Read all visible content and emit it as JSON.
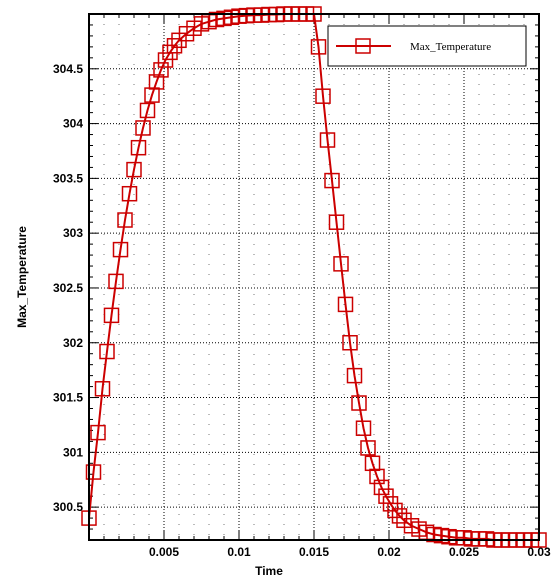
{
  "chart_data": {
    "type": "line",
    "title": "",
    "xlabel": "Time",
    "ylabel": "Max_Temperature",
    "xlim": [
      0,
      0.03
    ],
    "ylim": [
      300.2,
      305
    ],
    "x_ticks": [
      0.005,
      0.01,
      0.015,
      0.02,
      0.025,
      0.03
    ],
    "x_tick_labels": [
      "0.005",
      "0.01",
      "0.015",
      "0.02",
      "0.025",
      "0.03"
    ],
    "y_ticks": [
      300.5,
      301,
      301.5,
      302,
      302.5,
      303,
      303.5,
      304,
      304.5
    ],
    "y_tick_labels": [
      "300.5",
      "301",
      "301.5",
      "302",
      "302.5",
      "303",
      "303.5",
      "304",
      "304.5"
    ],
    "grid": true,
    "legend": {
      "placement": "top-right",
      "entries": [
        "Max_Temperature"
      ]
    },
    "series": [
      {
        "name": "Max_Temperature",
        "color": "#cc0000",
        "marker": "square",
        "x": [
          0.0,
          0.0003,
          0.0006,
          0.0009,
          0.0012,
          0.0015,
          0.0018,
          0.0021,
          0.0024,
          0.0027,
          0.003,
          0.0033,
          0.0036,
          0.0039,
          0.0042,
          0.0045,
          0.0048,
          0.0051,
          0.0054,
          0.0057,
          0.006,
          0.0065,
          0.007,
          0.0075,
          0.008,
          0.0085,
          0.009,
          0.0095,
          0.01,
          0.0105,
          0.011,
          0.0115,
          0.012,
          0.0125,
          0.013,
          0.0135,
          0.014,
          0.0145,
          0.015,
          0.0153,
          0.0156,
          0.0159,
          0.0162,
          0.0165,
          0.0168,
          0.0171,
          0.0174,
          0.0177,
          0.018,
          0.0183,
          0.0186,
          0.0189,
          0.0192,
          0.0195,
          0.0198,
          0.0201,
          0.0204,
          0.0207,
          0.021,
          0.0215,
          0.022,
          0.0225,
          0.023,
          0.0235,
          0.024,
          0.0245,
          0.025,
          0.0255,
          0.026,
          0.0265,
          0.027,
          0.0275,
          0.028,
          0.0285,
          0.029,
          0.0295,
          0.03
        ],
        "y": [
          300.4,
          300.82,
          301.18,
          301.58,
          301.92,
          302.25,
          302.56,
          302.85,
          303.12,
          303.36,
          303.58,
          303.78,
          303.96,
          304.12,
          304.26,
          304.38,
          304.49,
          304.58,
          304.65,
          304.71,
          304.76,
          304.82,
          304.87,
          304.91,
          304.93,
          304.95,
          304.96,
          304.97,
          304.98,
          304.985,
          304.99,
          304.99,
          304.995,
          304.995,
          305.0,
          305.0,
          305.0,
          305.0,
          305.0,
          304.7,
          304.25,
          303.85,
          303.48,
          303.1,
          302.72,
          302.35,
          302.0,
          301.7,
          301.45,
          301.22,
          301.04,
          300.9,
          300.78,
          300.68,
          300.6,
          300.53,
          300.47,
          300.42,
          300.38,
          300.33,
          300.3,
          300.27,
          300.25,
          300.24,
          300.23,
          300.22,
          300.22,
          300.21,
          300.21,
          300.21,
          300.2,
          300.2,
          300.2,
          300.2,
          300.2,
          300.2,
          300.2
        ]
      }
    ]
  }
}
